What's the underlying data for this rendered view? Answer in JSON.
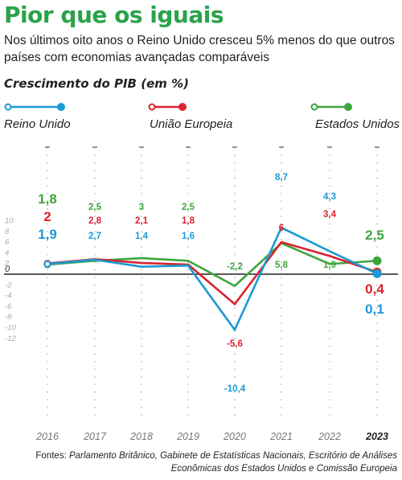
{
  "title": "Pior que os iguais",
  "subtitle": "Nos últimos oito anos o Reino Unido cresceu 5% menos do que outros países com economias avançadas comparáveis",
  "chart_heading": "Crescimento do PIB (em %)",
  "sources_prefix": "Fontes:",
  "sources_text": "Parlamento Britânico, Gabinete de Estatísticas Nacionais, Escritório de Análises Econômicas dos Estados Unidos e Comissão Europeia",
  "colors": {
    "uk": "#1a9ad6",
    "eu": "#d9232e",
    "us": "#3da53c",
    "title": "#2aa34a"
  },
  "chart_data": {
    "type": "line",
    "x": [
      "2016",
      "2017",
      "2018",
      "2019",
      "2020",
      "2021",
      "2022",
      "2023"
    ],
    "y_ticks": [
      "10",
      "8",
      "6",
      "4",
      "2",
      "0",
      "-2",
      "-4",
      "-6",
      "-8",
      "-10",
      "-12"
    ],
    "ylim": [
      -12,
      10
    ],
    "grid": false,
    "series": [
      {
        "key": "uk",
        "name": "Reino Unido",
        "values": [
          1.9,
          2.7,
          1.4,
          1.6,
          -10.4,
          8.7,
          4.3,
          0.1
        ],
        "labels": [
          "1,9",
          "2,7",
          "1,4",
          "1,6",
          "-10,4",
          "8,7",
          "4,3",
          "0,1"
        ]
      },
      {
        "key": "eu",
        "name": "União Europeia",
        "values": [
          2,
          2.8,
          2.1,
          1.8,
          -5.6,
          6,
          3.4,
          0.4
        ],
        "labels": [
          "2",
          "2,8",
          "2,1",
          "1,8",
          "-5,6",
          "6",
          "3,4",
          "0,4"
        ]
      },
      {
        "key": "us",
        "name": "Estados Unidos",
        "values": [
          1.8,
          2.5,
          3,
          2.5,
          -2.2,
          5.8,
          1.9,
          2.5
        ],
        "labels": [
          "1,8",
          "2,5",
          "3",
          "2,5",
          "-2,2",
          "5,8",
          "1,9",
          "2,5"
        ]
      }
    ]
  }
}
